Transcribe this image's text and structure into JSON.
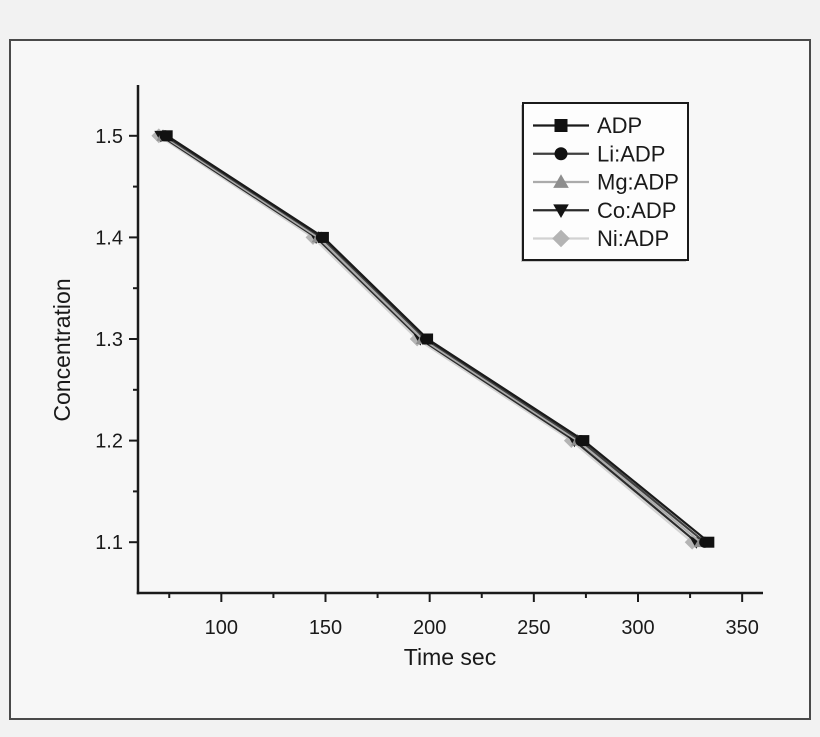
{
  "figure": {
    "background": "#f7f7f7",
    "border_color": "#4a4a4a",
    "text_color": "#1a1a1a",
    "spine_color": "#1a1a1a",
    "legend_fill": "#fdfdfd",
    "legend_border": "#1a1a1a",
    "legend_shadow": "#c9c9c9"
  },
  "chart_data": {
    "type": "line",
    "title": "",
    "xlabel": "Time sec",
    "ylabel": "Concentration",
    "xlim": [
      60,
      360
    ],
    "ylim": [
      1.05,
      1.55
    ],
    "grid": false,
    "legend_position": "upper right",
    "x_major_ticks": [
      100,
      150,
      200,
      250,
      300,
      350
    ],
    "x_minor_ticks": [
      75,
      125,
      175,
      225,
      275,
      325
    ],
    "y_major_ticks": [
      1.5,
      1.4,
      1.3,
      1.2,
      1.1
    ],
    "y_minor_ticks": [
      1.45,
      1.35,
      1.25,
      1.15
    ],
    "x_tick_labels": [
      "100",
      "150",
      "200",
      "250",
      "300",
      "350"
    ],
    "y_tick_labels": [
      "1.5",
      "1.4",
      "1.3",
      "1.2",
      "1.1"
    ],
    "series": [
      {
        "name": "ADP",
        "marker": "square",
        "marker_color": "#111111",
        "line_color": "#1a1a1a",
        "x": [
          74,
          149,
          199,
          274,
          334
        ],
        "y": [
          1.5,
          1.4,
          1.3,
          1.2,
          1.1
        ]
      },
      {
        "name": "Li:ADP",
        "marker": "circle",
        "marker_color": "#111111",
        "line_color": "#3f3f3f",
        "x": [
          73,
          148,
          198,
          272.5,
          332
        ],
        "y": [
          1.5,
          1.4,
          1.3,
          1.2,
          1.1
        ]
      },
      {
        "name": "Mg:ADP",
        "marker": "triangle-up",
        "marker_color": "#8e8e8e",
        "line_color": "#ababab",
        "x": [
          72,
          146.5,
          196.5,
          271,
          330
        ],
        "y": [
          1.5,
          1.4,
          1.3,
          1.2,
          1.1
        ]
      },
      {
        "name": "Co:ADP",
        "marker": "triangle-down",
        "marker_color": "#141414",
        "line_color": "#2b2b2b",
        "x": [
          71,
          145.5,
          195.5,
          269.5,
          328
        ],
        "y": [
          1.5,
          1.4,
          1.3,
          1.2,
          1.1
        ]
      },
      {
        "name": "Ni:ADP",
        "marker": "diamond",
        "marker_color": "#b4b4b4",
        "line_color": "#d2d2d2",
        "x": [
          70,
          144,
          194,
          268,
          326
        ],
        "y": [
          1.5,
          1.4,
          1.3,
          1.2,
          1.1
        ]
      }
    ]
  }
}
